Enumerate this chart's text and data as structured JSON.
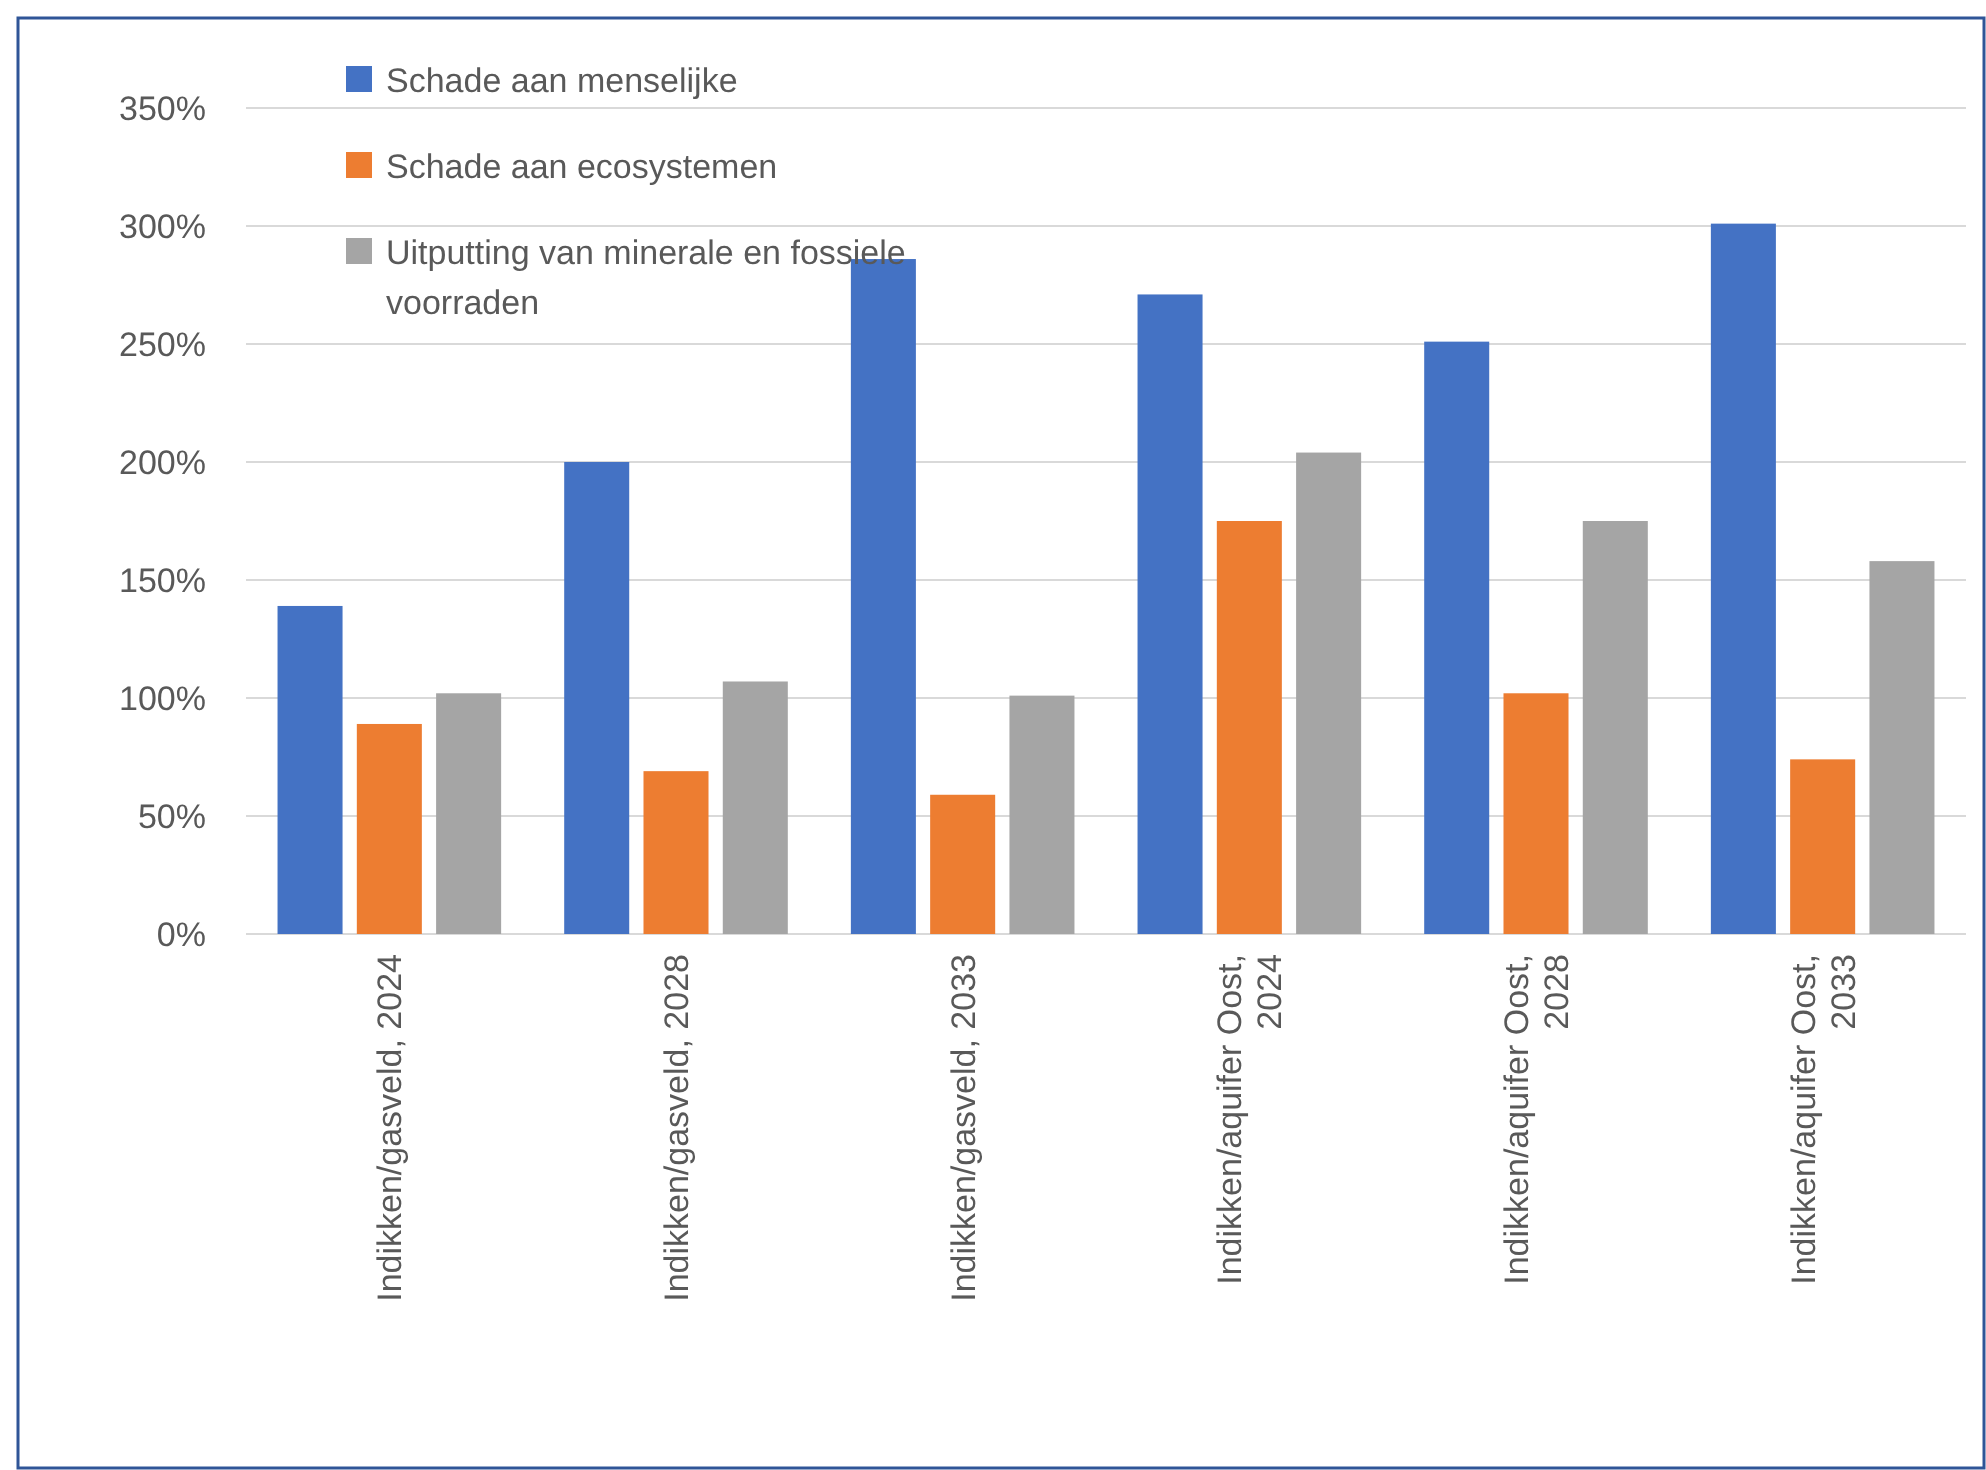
{
  "chart_data": {
    "type": "bar",
    "categories": [
      "Indikken/gasveld, 2024",
      "Indikken/gasveld, 2028",
      "Indikken/gasveld, 2033",
      "Indikken/aquifer Oost, 2024",
      "Indikken/aquifer Oost, 2028",
      "Indikken/aquifer Oost, 2033"
    ],
    "series": [
      {
        "name": "Schade aan menselijke",
        "color": "#4472c4",
        "values": [
          139,
          200,
          286,
          271,
          251,
          301
        ]
      },
      {
        "name": "Schade aan ecosystemen",
        "color": "#ed7d31",
        "values": [
          89,
          69,
          59,
          175,
          102,
          74
        ]
      },
      {
        "name": "Uitputting van minerale en fossiele voorraden",
        "color": "#a5a5a5",
        "values": [
          102,
          107,
          101,
          204,
          175,
          158
        ]
      }
    ],
    "ylim": [
      0,
      350
    ],
    "yticks": [
      {
        "value": 0,
        "label": "0%"
      },
      {
        "value": 50,
        "label": "50%"
      },
      {
        "value": 100,
        "label": "100%"
      },
      {
        "value": 150,
        "label": "150%"
      },
      {
        "value": 200,
        "label": "200%"
      },
      {
        "value": 250,
        "label": "250%"
      },
      {
        "value": 300,
        "label": "300%"
      },
      {
        "value": 350,
        "label": "350%"
      }
    ],
    "grid": "y",
    "legend": "top left"
  }
}
